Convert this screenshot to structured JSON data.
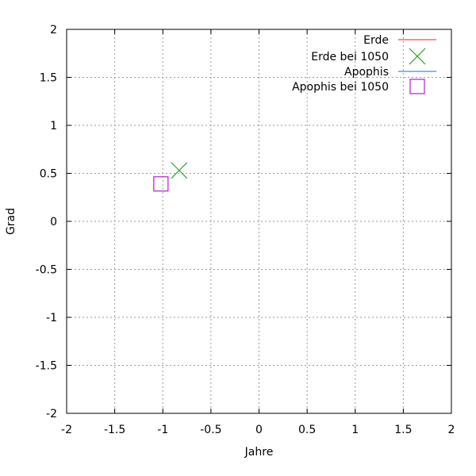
{
  "chart_data": {
    "type": "scatter",
    "xlabel": "Jahre",
    "ylabel": "Grad",
    "xlim": [
      -2,
      2
    ],
    "ylim": [
      -2,
      2
    ],
    "xticks": [
      -2,
      -1.5,
      -1,
      -0.5,
      0,
      0.5,
      1,
      1.5,
      2
    ],
    "yticks": [
      -2,
      -1.5,
      -1,
      -0.5,
      0,
      0.5,
      1,
      1.5,
      2
    ],
    "xtick_labels": [
      "-2",
      "-1.5",
      "-1",
      "-0.5",
      "0",
      "0.5",
      "1",
      "1.5",
      "2"
    ],
    "ytick_labels": [
      "-2",
      "-1.5",
      "-1",
      "-0.5",
      "0",
      "0.5",
      "1",
      "1.5",
      "2"
    ],
    "grid": true,
    "legend_position": "top-right",
    "series": [
      {
        "name": "Erde",
        "kind": "line",
        "color": "#e0202a",
        "x": [],
        "y": []
      },
      {
        "name": "Erde bei 1050",
        "kind": "marker",
        "marker": "x",
        "color": "#21a121",
        "x": [
          -0.83
        ],
        "y": [
          0.53
        ]
      },
      {
        "name": "Apophis",
        "kind": "line",
        "color": "#1a6fc4",
        "x": [],
        "y": []
      },
      {
        "name": "Apophis bei 1050",
        "kind": "marker",
        "marker": "square",
        "color": "#b020c8",
        "x": [
          -1.02
        ],
        "y": [
          0.39
        ]
      }
    ]
  }
}
